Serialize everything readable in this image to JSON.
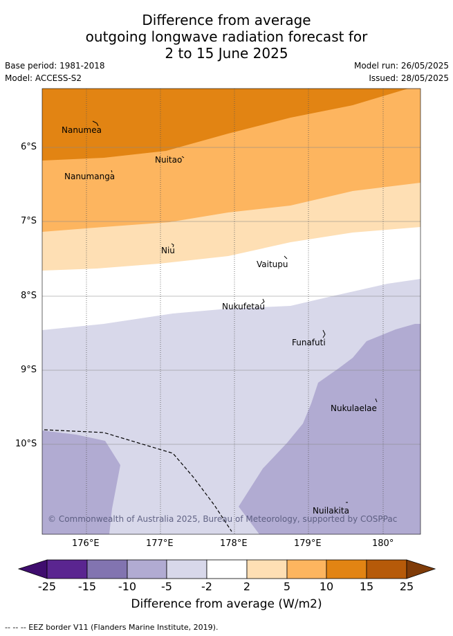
{
  "title": {
    "line1": "Difference from average",
    "line2": "outgoing longwave radiation forecast for",
    "line3": "2 to 15 June 2025"
  },
  "meta": {
    "base_period": "Base period: 1981-2018",
    "model": "Model: ACCESS-S2",
    "model_run": "Model run: 26/05/2025",
    "issued": "Issued: 28/05/2025"
  },
  "map": {
    "lat_ticks": [
      "6°S",
      "7°S",
      "8°S",
      "9°S",
      "10°S"
    ],
    "lon_ticks": [
      "176°E",
      "177°E",
      "178°E",
      "179°E",
      "180°"
    ],
    "islands": [
      "Nanumea",
      "Nuitao",
      "Nanumanga",
      "Niu",
      "Vaitupu",
      "Nukufetau",
      "Funafuti",
      "Nukulaelae",
      "Nuilakita"
    ],
    "copyright": "© Commonwealth of Australia 2025, Bureau of Meteorology, supported by COSPPac",
    "colors": {
      "orange_dark": "#e28413",
      "orange_mid": "#fdb55f",
      "orange_light": "#fedfb4",
      "white": "#ffffff",
      "lavender_light": "#d8d8ea",
      "lavender_mid": "#b1abd2"
    }
  },
  "colorbar": {
    "labels": [
      "-25",
      "-15",
      "-10",
      "-5",
      "-2",
      "2",
      "5",
      "10",
      "15",
      "25"
    ],
    "colors": [
      "#3f0d6e",
      "#5a2590",
      "#8274b0",
      "#b1abd2",
      "#d8d8ea",
      "#ffffff",
      "#fedfb4",
      "#fdb55f",
      "#e28413",
      "#b65a09",
      "#7f3b08"
    ],
    "title": "Difference from average (W/m2)"
  },
  "legend_note": "-- -- -- EEZ border V11 (Flanders Marine Institute, 2019)."
}
